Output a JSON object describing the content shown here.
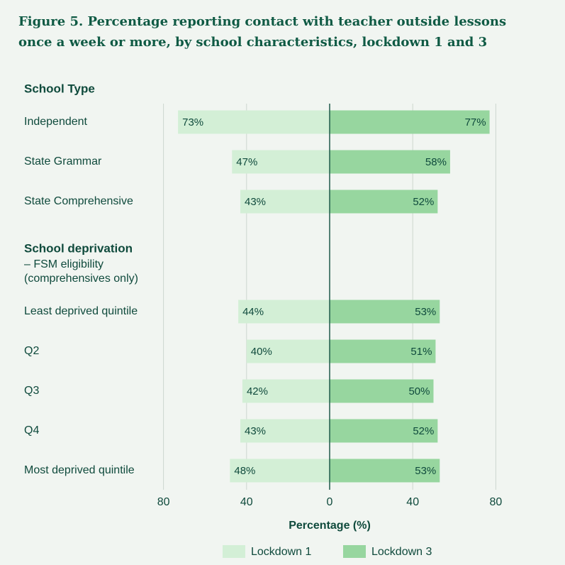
{
  "title": "Figure 5. Percentage reporting contact with teacher outside lessons once a week or more, by school characteristics, lockdown 1 and 3",
  "chart_data": {
    "type": "bar",
    "orientation": "horizontal-diverging",
    "groups": [
      {
        "heading": "School Type",
        "sublines": [],
        "categories": [
          "Independent",
          "State Grammar",
          "State Comprehensive"
        ]
      },
      {
        "heading": "School deprivation",
        "sublines": [
          "– FSM eligibility",
          "(comprehensives only)"
        ],
        "categories": [
          "Least deprived quintile",
          "Q2",
          "Q3",
          "Q4",
          "Most deprived quintile"
        ]
      }
    ],
    "categories": [
      "Independent",
      "State Grammar",
      "State Comprehensive",
      "Least deprived quintile",
      "Q2",
      "Q3",
      "Q4",
      "Most deprived quintile"
    ],
    "series": [
      {
        "name": "Lockdown 1",
        "side": "left",
        "color": "#d3efd6",
        "values": [
          73,
          47,
          43,
          44,
          40,
          42,
          43,
          48
        ]
      },
      {
        "name": "Lockdown 3",
        "side": "right",
        "color": "#97d69f",
        "values": [
          77,
          58,
          52,
          53,
          51,
          50,
          52,
          53
        ]
      }
    ],
    "value_suffix": "%",
    "xlabel": "Percentage (%)",
    "xlim": [
      -80,
      80
    ],
    "xticks": [
      -80,
      -40,
      0,
      40,
      80
    ],
    "xtick_labels": [
      "80",
      "40",
      "0",
      "40",
      "80"
    ],
    "grid": true,
    "legend_position": "bottom-center"
  }
}
